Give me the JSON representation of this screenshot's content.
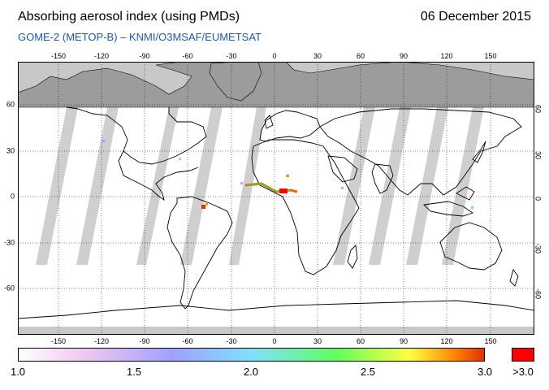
{
  "header": {
    "title": "Absorbing aerosol index (using PMDs)",
    "date": "06 December 2015",
    "subtitle": "GOME-2 (METOP-B)  –  KNMI/O3MSAF/EUMETSAT"
  },
  "map": {
    "lon_ticks": [
      "-150",
      "-120",
      "-90",
      "-60",
      "-30",
      "0",
      "30",
      "60",
      "90",
      "120",
      "150"
    ],
    "lat_ticks_left": [
      "60",
      "30",
      "0",
      "-30",
      "-60"
    ],
    "lat_ticks_right": [
      "60",
      "30",
      "0",
      "-30",
      "-60"
    ],
    "colors": {
      "no_data": "#c8c8c8",
      "land_grey": "#9a9a9a",
      "graticule": "#000000"
    }
  },
  "colorbar": {
    "labels": [
      "1.0",
      "1.5",
      "2.0",
      "2.5",
      "3.0"
    ],
    "overflow_label": ">3.0",
    "overflow_color": "#ff0000",
    "stops": [
      "#ffffff",
      "#f0c8f0",
      "#a0a0ff",
      "#80e0ff",
      "#60ff60",
      "#ffff40",
      "#ff8000",
      "#e03000"
    ]
  }
}
